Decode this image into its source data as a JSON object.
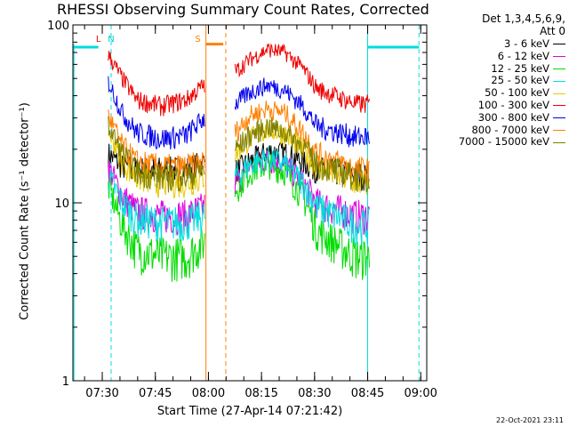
{
  "title": "RHESSI Observing Summary Count Rates, Corrected",
  "detectors_label": "Det 1,3,4,5,6,9,",
  "attenuator_label": "Att 0",
  "x_axis_label": "Start Time (27-Apr-14 07:21:42)",
  "y_axis_label": "Corrected Count Rate (s⁻¹ detector⁻¹)",
  "timestamp": "22-Oct-2021 23:11",
  "chart_data": {
    "type": "line",
    "title": "RHESSI Observing Summary Count Rates, Corrected",
    "xlabel": "Start Time (27-Apr-14 07:21:42)",
    "ylabel": "Corrected Count Rate (s^-1 detector^-1)",
    "x_unit": "minutes after 07:21:42",
    "xlim": [
      0,
      100
    ],
    "ylim": [
      1,
      100
    ],
    "yscale": "log",
    "x_ticks": [
      "07:30",
      "07:45",
      "08:00",
      "08:15",
      "08:30",
      "08:45",
      "09:00"
    ],
    "x_tick_values": [
      8.3,
      23.3,
      38.3,
      53.3,
      68.3,
      83.3,
      98.3
    ],
    "y_ticks": [
      "1",
      "10",
      "100"
    ],
    "y_tick_values": [
      1,
      10,
      100
    ],
    "legend_position": "right",
    "series": [
      {
        "name": "3 - 6 keV",
        "color": "#000000",
        "points": [
          [
            10,
            19
          ],
          [
            14,
            16
          ],
          [
            18,
            15.5
          ],
          [
            25,
            15.5
          ],
          [
            32,
            15.5
          ],
          [
            37,
            17
          ],
          [
            46,
            15
          ],
          [
            50,
            17
          ],
          [
            55,
            19.5
          ],
          [
            60,
            19
          ],
          [
            65,
            17
          ],
          [
            69,
            15.5
          ],
          [
            80,
            14.5
          ],
          [
            84,
            14
          ]
        ]
      },
      {
        "name": "6 - 12 keV",
        "color": "#e000e0",
        "points": [
          [
            10,
            16
          ],
          [
            14,
            11
          ],
          [
            18,
            9
          ],
          [
            25,
            8.5
          ],
          [
            32,
            8.5
          ],
          [
            37,
            9.5
          ],
          [
            46,
            13
          ],
          [
            50,
            16
          ],
          [
            55,
            17.5
          ],
          [
            60,
            16.5
          ],
          [
            65,
            13
          ],
          [
            69,
            10
          ],
          [
            80,
            8.5
          ],
          [
            84,
            8.5
          ]
        ]
      },
      {
        "name": "12 - 25 keV",
        "color": "#00dd00",
        "points": [
          [
            10,
            12.5
          ],
          [
            14,
            7.5
          ],
          [
            18,
            5.5
          ],
          [
            25,
            5
          ],
          [
            32,
            5
          ],
          [
            37,
            6
          ],
          [
            46,
            12
          ],
          [
            50,
            15
          ],
          [
            55,
            16.5
          ],
          [
            60,
            15
          ],
          [
            65,
            11
          ],
          [
            69,
            7
          ],
          [
            80,
            5
          ],
          [
            84,
            5
          ]
        ]
      },
      {
        "name": "25 - 50 keV",
        "color": "#00dddd",
        "points": [
          [
            10,
            14
          ],
          [
            14,
            10
          ],
          [
            18,
            8.2
          ],
          [
            25,
            7.8
          ],
          [
            32,
            7.8
          ],
          [
            37,
            8.5
          ],
          [
            46,
            14
          ],
          [
            50,
            16.5
          ],
          [
            55,
            18
          ],
          [
            60,
            16.5
          ],
          [
            65,
            13
          ],
          [
            69,
            9.5
          ],
          [
            80,
            7.5
          ],
          [
            84,
            7.5
          ]
        ]
      },
      {
        "name": "50 - 100 keV",
        "color": "#e8c800",
        "points": [
          [
            10,
            26
          ],
          [
            14,
            17
          ],
          [
            18,
            14
          ],
          [
            25,
            13
          ],
          [
            32,
            13
          ],
          [
            37,
            14
          ],
          [
            46,
            19
          ],
          [
            50,
            23
          ],
          [
            55,
            26
          ],
          [
            60,
            24.5
          ],
          [
            65,
            20
          ],
          [
            69,
            16
          ],
          [
            80,
            13
          ],
          [
            84,
            13
          ]
        ]
      },
      {
        "name": "100 - 300 keV",
        "color": "#ee0000",
        "points": [
          [
            10,
            68
          ],
          [
            14,
            50
          ],
          [
            18,
            38
          ],
          [
            25,
            35
          ],
          [
            32,
            38
          ],
          [
            37,
            46
          ],
          [
            46,
            55
          ],
          [
            50,
            64
          ],
          [
            55,
            73
          ],
          [
            60,
            70
          ],
          [
            65,
            57
          ],
          [
            69,
            44
          ],
          [
            80,
            36
          ],
          [
            84,
            36
          ]
        ]
      },
      {
        "name": "300 - 800 keV",
        "color": "#0000ee",
        "points": [
          [
            10,
            48
          ],
          [
            14,
            32
          ],
          [
            18,
            25
          ],
          [
            25,
            23
          ],
          [
            32,
            24
          ],
          [
            37,
            30
          ],
          [
            46,
            36
          ],
          [
            50,
            42
          ],
          [
            55,
            46
          ],
          [
            60,
            43
          ],
          [
            65,
            35
          ],
          [
            69,
            27
          ],
          [
            80,
            23.5
          ],
          [
            84,
            23.5
          ]
        ]
      },
      {
        "name": "800 - 7000 keV",
        "color": "#ff8000",
        "points": [
          [
            10,
            31
          ],
          [
            14,
            21
          ],
          [
            18,
            17
          ],
          [
            25,
            16
          ],
          [
            32,
            16
          ],
          [
            37,
            17
          ],
          [
            46,
            25
          ],
          [
            50,
            31
          ],
          [
            55,
            34
          ],
          [
            60,
            32
          ],
          [
            65,
            25
          ],
          [
            69,
            19
          ],
          [
            80,
            15.5
          ],
          [
            84,
            15.5
          ]
        ]
      },
      {
        "name": "7000 - 15000 keV",
        "color": "#808000",
        "points": [
          [
            10,
            27
          ],
          [
            14,
            19
          ],
          [
            18,
            15
          ],
          [
            25,
            14
          ],
          [
            32,
            14
          ],
          [
            37,
            15.5
          ],
          [
            46,
            20
          ],
          [
            50,
            24
          ],
          [
            55,
            27
          ],
          [
            60,
            25
          ],
          [
            65,
            21
          ],
          [
            69,
            16.5
          ],
          [
            80,
            14
          ],
          [
            84,
            14
          ]
        ]
      }
    ],
    "annotations": [
      {
        "label": "L",
        "x": 7.2,
        "color": "#ee0000"
      },
      {
        "label": "N",
        "x": 10.8,
        "color": "#00cccc"
      },
      {
        "label": "S",
        "x": 35.3,
        "color": "#ff8000"
      }
    ]
  }
}
